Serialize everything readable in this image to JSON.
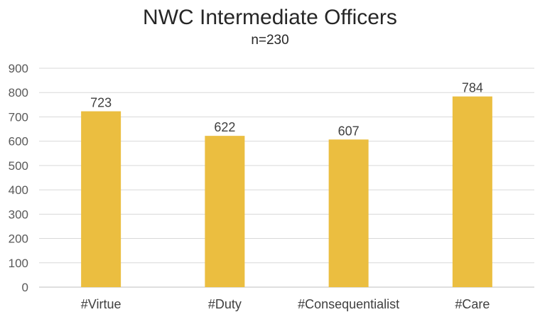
{
  "chart_data": {
    "type": "bar",
    "title": "NWC Intermediate Officers",
    "subtitle": "n=230",
    "categories": [
      "#Virtue",
      "#Duty",
      "#Consequentialist",
      "#Care"
    ],
    "values": [
      723,
      622,
      607,
      784
    ],
    "data_labels": [
      "723",
      "622",
      "607",
      "784"
    ],
    "ylim": [
      0,
      900
    ],
    "yticks": [
      "0",
      "100",
      "200",
      "300",
      "400",
      "500",
      "600",
      "700",
      "800",
      "900"
    ],
    "grid": true,
    "bar_color": "#EBBE40",
    "gridline_color": "#D9D9D9"
  }
}
